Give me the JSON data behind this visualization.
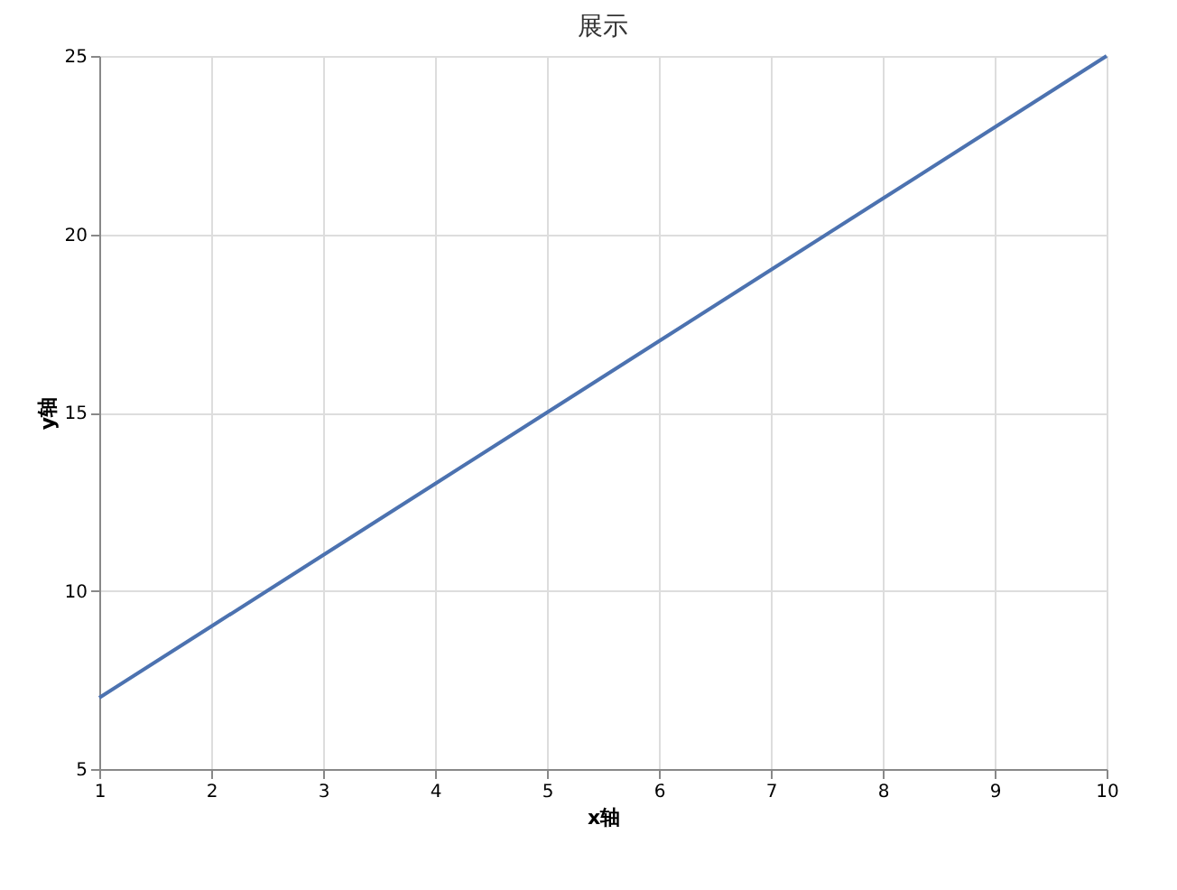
{
  "chart_data": {
    "type": "line",
    "title": "展示",
    "xlabel": "x轴",
    "ylabel": "y轴",
    "x": [
      1,
      2,
      3,
      4,
      5,
      6,
      7,
      8,
      9,
      10
    ],
    "series": [
      {
        "color": "#4c72b0",
        "values": [
          7,
          9,
          11,
          13,
          15,
          17,
          19,
          21,
          23,
          25
        ]
      }
    ],
    "xlim": [
      1,
      10
    ],
    "xticks": [
      1,
      2,
      3,
      4,
      5,
      6,
      7,
      8,
      9,
      10
    ],
    "ylim": [
      5,
      25
    ],
    "yticks": [
      5,
      10,
      15,
      20,
      25
    ],
    "grid": true,
    "legend": false,
    "marker": "none",
    "line_style": "solid"
  }
}
